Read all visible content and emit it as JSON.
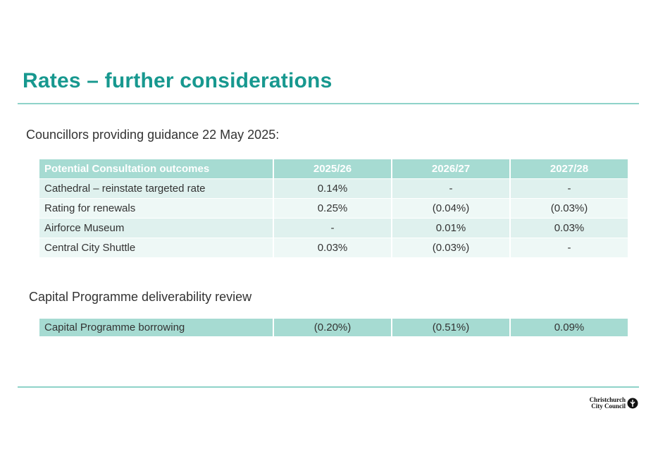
{
  "header": {
    "title": "Rates – further considerations"
  },
  "section1": {
    "heading": "Councillors providing guidance 22 May 2025:",
    "table": {
      "columns": [
        "Potential Consultation outcomes",
        "2025/26",
        "2026/27",
        "2027/28"
      ],
      "rows": [
        [
          "Cathedral – reinstate targeted rate",
          "0.14%",
          "-",
          "-"
        ],
        [
          "Rating for renewals",
          "0.25%",
          "(0.04%)",
          "(0.03%)"
        ],
        [
          "Airforce Museum",
          "-",
          "0.01%",
          "0.03%"
        ],
        [
          "Central City Shuttle",
          "0.03%",
          "(0.03%)",
          "-"
        ]
      ]
    }
  },
  "section2": {
    "heading": "Capital Programme deliverability review",
    "table": {
      "rows": [
        [
          "Capital Programme borrowing",
          "(0.20%)",
          "(0.51%)",
          "0.09%"
        ]
      ]
    }
  },
  "footer": {
    "logo": [
      "Christchurch",
      "City Council"
    ]
  }
}
